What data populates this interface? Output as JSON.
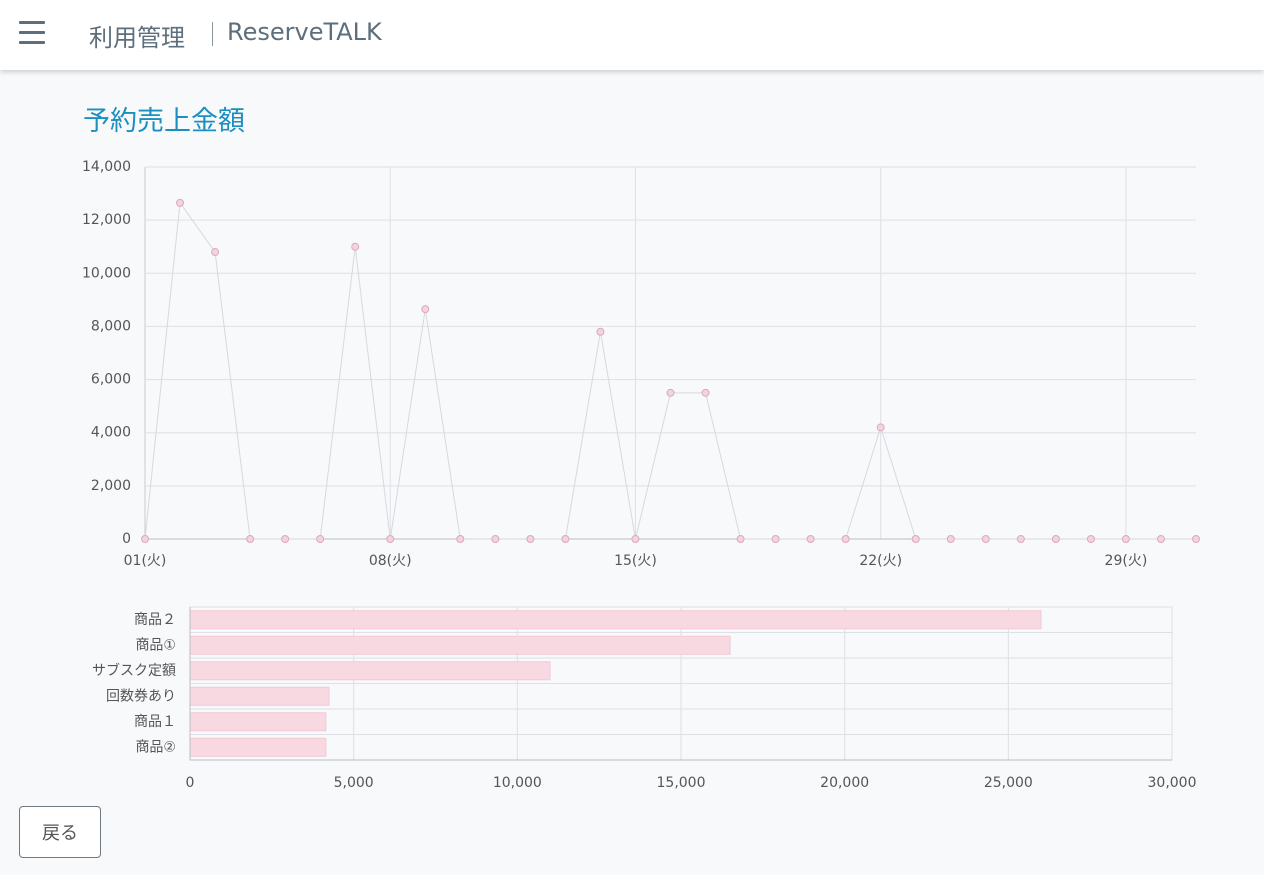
{
  "header": {
    "title": "利用管理",
    "app": "ReserveTALK"
  },
  "page_title": "予約売上金額",
  "chart_data": [
    {
      "type": "line",
      "categories": [
        "01(火)",
        null,
        null,
        null,
        null,
        null,
        null,
        "08(火)",
        null,
        null,
        null,
        null,
        null,
        null,
        "15(火)",
        null,
        null,
        null,
        null,
        null,
        null,
        "22(火)",
        null,
        null,
        null,
        null,
        null,
        null,
        "29(火)",
        null,
        null
      ],
      "values": [
        0,
        12650,
        10800,
        0,
        0,
        0,
        11000,
        0,
        8650,
        0,
        0,
        0,
        0,
        7800,
        0,
        5500,
        5500,
        0,
        0,
        0,
        0,
        4200,
        0,
        0,
        0,
        0,
        0,
        0,
        0,
        0,
        0
      ],
      "color": "#d8d8de",
      "marker_color": "#f3d3dc",
      "ylim": [
        0,
        14000
      ],
      "yticks": [
        0,
        {
          "value": 2000,
          "label": "2,000"
        },
        {
          "value": 4000,
          "label": "4,000"
        },
        {
          "value": 6000,
          "label": "6,000"
        },
        {
          "value": 8000,
          "label": "8,000"
        },
        {
          "value": 10000,
          "label": "10,000"
        },
        {
          "value": 12000,
          "label": "12,000"
        },
        {
          "value": 14000,
          "label": "14,000"
        }
      ],
      "grid": true
    },
    {
      "type": "hbar",
      "categories": [
        "商品２",
        "商品①",
        "サブスク定額",
        "回数券あり",
        "商品１",
        "商品②"
      ],
      "values": [
        26000,
        16500,
        11000,
        4250,
        4150,
        4150
      ],
      "color": "#f8d9e2",
      "xlim": [
        0,
        30000
      ],
      "xticks": [
        0,
        {
          "value": 5000,
          "label": "5,000"
        },
        {
          "value": 10000,
          "label": "10,000"
        },
        {
          "value": 15000,
          "label": "15,000"
        },
        {
          "value": 20000,
          "label": "20,000"
        },
        {
          "value": 25000,
          "label": "25,000"
        },
        {
          "value": 30000,
          "label": "30,000"
        }
      ],
      "grid": true
    }
  ],
  "back_button": "戻る"
}
